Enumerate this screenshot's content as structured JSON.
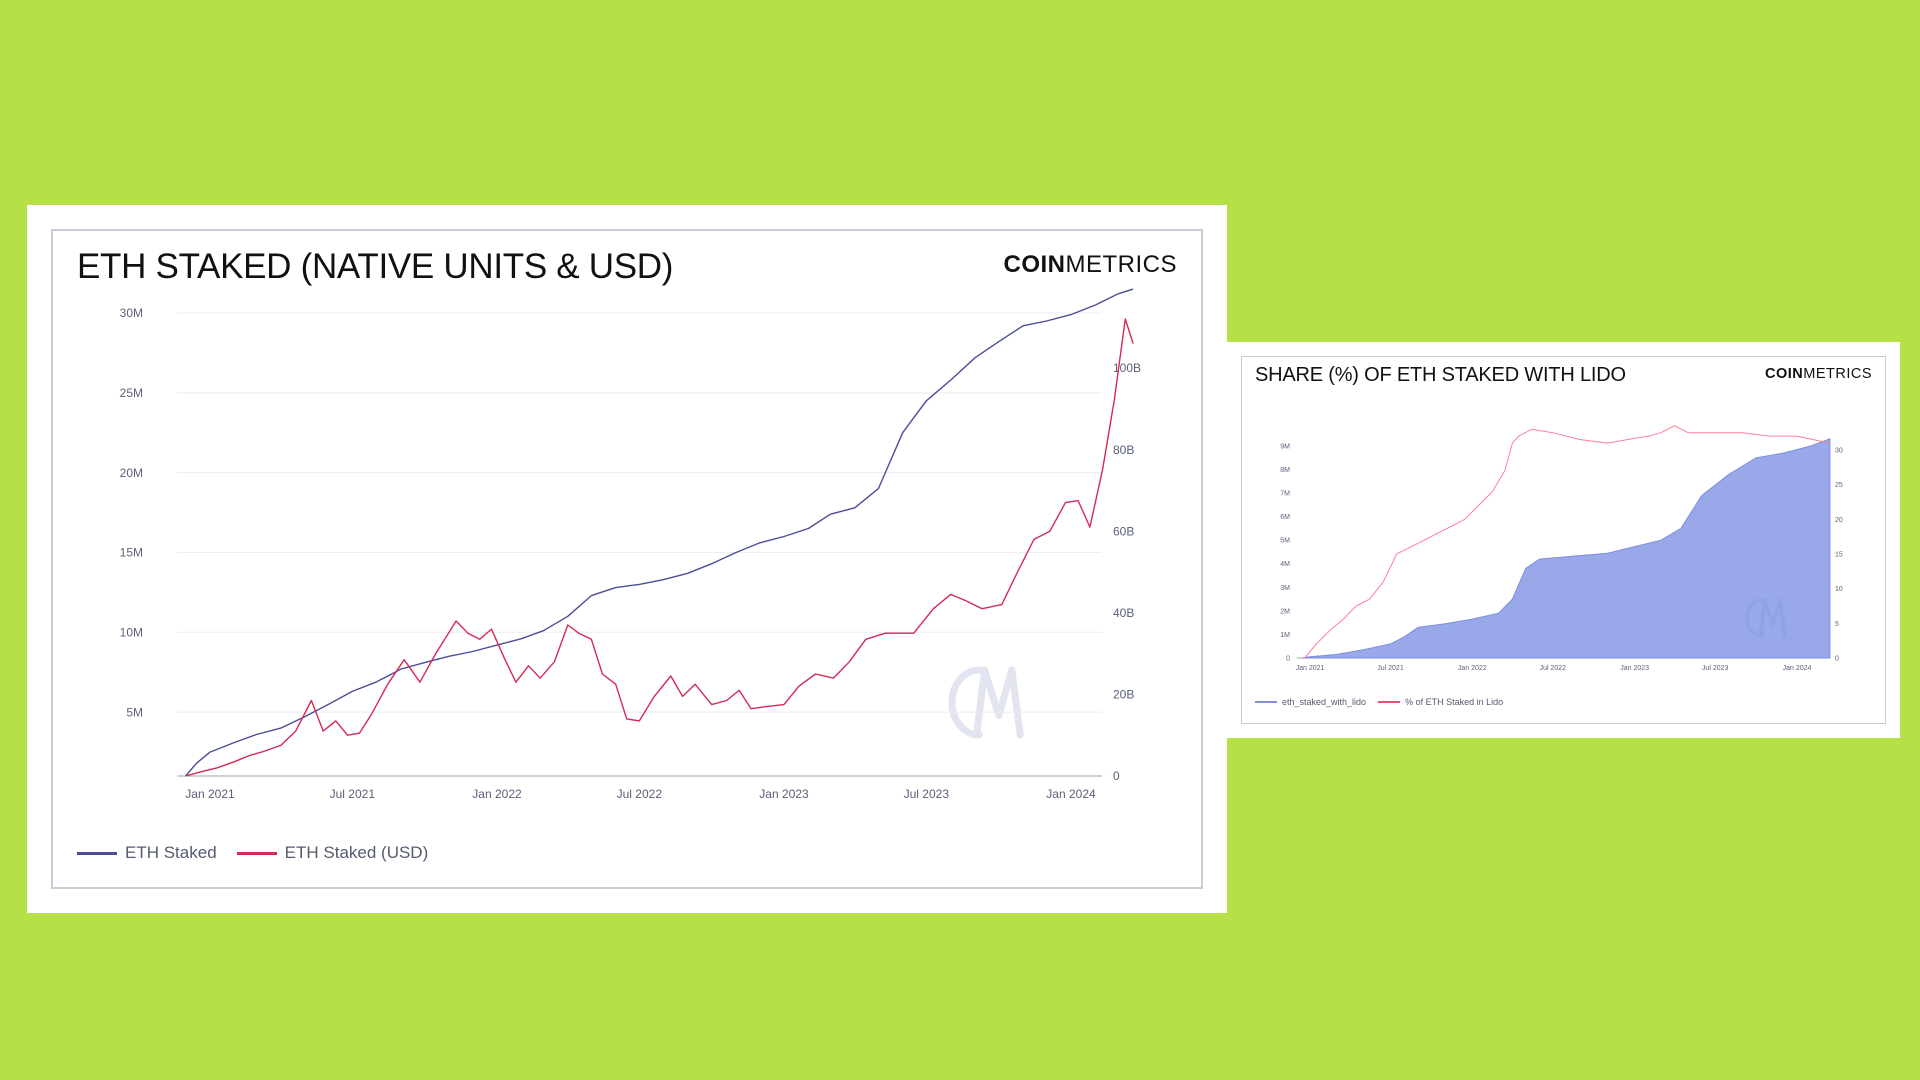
{
  "colors": {
    "background": "#b5e048",
    "eth_line": "#4a4e98",
    "usd_line": "#d42a55",
    "lido_area": "#8e9ee6",
    "lido_line": "#ff7f99",
    "grid": "#ececf2",
    "watermark": "#e2e4ef"
  },
  "icons": {
    "watermark": "cm-watermark-icon"
  },
  "chart_data": [
    {
      "type": "line",
      "title": "ETH STAKED (NATIVE UNITS & USD)",
      "logo": {
        "bold": "COIN",
        "regular": "METRICS"
      },
      "x_ticks": [
        "Jan 2021",
        "Jul 2021",
        "Jan 2022",
        "Jul 2022",
        "Jan 2023",
        "Jul 2023",
        "Jan 2024"
      ],
      "y_left_ticks": [
        "5M",
        "10M",
        "15M",
        "20M",
        "25M",
        "30M"
      ],
      "y_right_ticks": [
        "0",
        "20B",
        "40B",
        "60B",
        "80B",
        "100B"
      ],
      "y_left_range": [
        1000000,
        30000000
      ],
      "y_right_range": [
        0,
        100000000000
      ],
      "legend_position": "bottom-left",
      "grid": true,
      "series": [
        {
          "name": "ETH Staked",
          "axis": "left",
          "points": [
            [
              "2020-12-01",
              1000000
            ],
            [
              "2020-12-15",
              1800000
            ],
            [
              "2021-01-01",
              2500000
            ],
            [
              "2021-02-01",
              3100000
            ],
            [
              "2021-03-01",
              3600000
            ],
            [
              "2021-04-01",
              4000000
            ],
            [
              "2021-05-01",
              4700000
            ],
            [
              "2021-06-01",
              5500000
            ],
            [
              "2021-07-01",
              6300000
            ],
            [
              "2021-08-01",
              6900000
            ],
            [
              "2021-09-01",
              7700000
            ],
            [
              "2021-10-01",
              8100000
            ],
            [
              "2021-11-01",
              8500000
            ],
            [
              "2021-12-01",
              8800000
            ],
            [
              "2022-01-01",
              9200000
            ],
            [
              "2022-02-01",
              9600000
            ],
            [
              "2022-03-01",
              10100000
            ],
            [
              "2022-04-01",
              11000000
            ],
            [
              "2022-05-01",
              12300000
            ],
            [
              "2022-06-01",
              12800000
            ],
            [
              "2022-07-01",
              13000000
            ],
            [
              "2022-08-01",
              13300000
            ],
            [
              "2022-09-01",
              13700000
            ],
            [
              "2022-10-01",
              14300000
            ],
            [
              "2022-11-01",
              15000000
            ],
            [
              "2022-12-01",
              15600000
            ],
            [
              "2023-01-01",
              16000000
            ],
            [
              "2023-02-01",
              16500000
            ],
            [
              "2023-03-01",
              17400000
            ],
            [
              "2023-04-01",
              17800000
            ],
            [
              "2023-05-01",
              19000000
            ],
            [
              "2023-06-01",
              22500000
            ],
            [
              "2023-07-01",
              24500000
            ],
            [
              "2023-08-01",
              25800000
            ],
            [
              "2023-09-01",
              27200000
            ],
            [
              "2023-10-01",
              28200000
            ],
            [
              "2023-11-01",
              29200000
            ],
            [
              "2023-12-01",
              29500000
            ],
            [
              "2024-01-01",
              29900000
            ],
            [
              "2024-02-01",
              30500000
            ],
            [
              "2024-03-01",
              31200000
            ],
            [
              "2024-03-20",
              31500000
            ]
          ]
        },
        {
          "name": "ETH Staked (USD)",
          "axis": "right",
          "points": [
            [
              "2020-12-01",
              0
            ],
            [
              "2020-12-20",
              1000000000
            ],
            [
              "2021-01-10",
              2000000000
            ],
            [
              "2021-02-01",
              3500000000
            ],
            [
              "2021-02-20",
              5000000000
            ],
            [
              "2021-03-10",
              6000000000
            ],
            [
              "2021-04-01",
              7500000000
            ],
            [
              "2021-04-20",
              11000000000
            ],
            [
              "2021-05-10",
              18500000000
            ],
            [
              "2021-05-25",
              11000000000
            ],
            [
              "2021-06-10",
              13500000000
            ],
            [
              "2021-06-25",
              10000000000
            ],
            [
              "2021-07-10",
              10500000000
            ],
            [
              "2021-07-25",
              15000000000
            ],
            [
              "2021-08-15",
              22500000000
            ],
            [
              "2021-09-05",
              28500000000
            ],
            [
              "2021-09-25",
              23000000000
            ],
            [
              "2021-10-15",
              30000000000
            ],
            [
              "2021-11-10",
              38000000000
            ],
            [
              "2021-11-25",
              35000000000
            ],
            [
              "2021-12-10",
              33500000000
            ],
            [
              "2021-12-25",
              36000000000
            ],
            [
              "2022-01-10",
              29000000000
            ],
            [
              "2022-01-25",
              23000000000
            ],
            [
              "2022-02-10",
              27000000000
            ],
            [
              "2022-02-25",
              24000000000
            ],
            [
              "2022-03-15",
              28000000000
            ],
            [
              "2022-04-01",
              37000000000
            ],
            [
              "2022-04-15",
              35000000000
            ],
            [
              "2022-05-01",
              33500000000
            ],
            [
              "2022-05-15",
              25000000000
            ],
            [
              "2022-06-01",
              22500000000
            ],
            [
              "2022-06-15",
              14000000000
            ],
            [
              "2022-07-01",
              13500000000
            ],
            [
              "2022-07-20",
              19500000000
            ],
            [
              "2022-08-10",
              24500000000
            ],
            [
              "2022-08-25",
              19500000000
            ],
            [
              "2022-09-10",
              22500000000
            ],
            [
              "2022-10-01",
              17500000000
            ],
            [
              "2022-10-20",
              18500000000
            ],
            [
              "2022-11-05",
              21000000000
            ],
            [
              "2022-11-20",
              16500000000
            ],
            [
              "2022-12-10",
              17000000000
            ],
            [
              "2023-01-01",
              17500000000
            ],
            [
              "2023-01-20",
              22000000000
            ],
            [
              "2023-02-10",
              25000000000
            ],
            [
              "2023-03-05",
              24000000000
            ],
            [
              "2023-03-25",
              28000000000
            ],
            [
              "2023-04-15",
              33500000000
            ],
            [
              "2023-05-10",
              35000000000
            ],
            [
              "2023-06-15",
              35000000000
            ],
            [
              "2023-07-10",
              41000000000
            ],
            [
              "2023-08-01",
              44500000000
            ],
            [
              "2023-08-20",
              43000000000
            ],
            [
              "2023-09-10",
              41000000000
            ],
            [
              "2023-10-05",
              42000000000
            ],
            [
              "2023-10-25",
              50000000000
            ],
            [
              "2023-11-15",
              58000000000
            ],
            [
              "2023-12-05",
              60000000000
            ],
            [
              "2023-12-25",
              67000000000
            ],
            [
              "2024-01-10",
              67500000000
            ],
            [
              "2024-01-25",
              61000000000
            ],
            [
              "2024-02-10",
              75000000000
            ],
            [
              "2024-02-25",
              92000000000
            ],
            [
              "2024-03-10",
              112000000000
            ],
            [
              "2024-03-20",
              106000000000
            ]
          ]
        }
      ]
    },
    {
      "type": "area",
      "title": "SHARE (%) OF ETH STAKED WITH LIDO",
      "logo": {
        "bold": "COIN",
        "regular": "METRICS"
      },
      "x_ticks": [
        "Jan 2021",
        "Jul 2021",
        "Jan 2022",
        "Jul 2022",
        "Jan 2023",
        "Jul 2023",
        "Jan 2024"
      ],
      "y_left_ticks": [
        "0",
        "1M",
        "2M",
        "3M",
        "4M",
        "5M",
        "6M",
        "7M",
        "8M",
        "9M"
      ],
      "y_right_ticks": [
        "0",
        "5",
        "10",
        "15",
        "20",
        "25",
        "30"
      ],
      "y_left_range": [
        0,
        9000000
      ],
      "y_right_range": [
        0,
        30
      ],
      "legend_position": "bottom-left",
      "grid": false,
      "series": [
        {
          "name": "eth_staked_with_lido",
          "axis": "left",
          "type": "area",
          "points": [
            [
              "2020-12-15",
              0
            ],
            [
              "2021-01-01",
              50000
            ],
            [
              "2021-03-01",
              150000
            ],
            [
              "2021-05-01",
              350000
            ],
            [
              "2021-07-01",
              600000
            ],
            [
              "2021-08-01",
              900000
            ],
            [
              "2021-09-01",
              1300000
            ],
            [
              "2021-11-01",
              1450000
            ],
            [
              "2022-01-01",
              1650000
            ],
            [
              "2022-03-01",
              1900000
            ],
            [
              "2022-04-01",
              2500000
            ],
            [
              "2022-05-01",
              3800000
            ],
            [
              "2022-06-01",
              4200000
            ],
            [
              "2022-08-01",
              4300000
            ],
            [
              "2022-11-01",
              4450000
            ],
            [
              "2022-12-15",
              4650000
            ],
            [
              "2023-03-01",
              5000000
            ],
            [
              "2023-04-15",
              5500000
            ],
            [
              "2023-06-01",
              6900000
            ],
            [
              "2023-08-01",
              7800000
            ],
            [
              "2023-10-01",
              8500000
            ],
            [
              "2023-12-01",
              8700000
            ],
            [
              "2024-02-01",
              9000000
            ],
            [
              "2024-03-15",
              9300000
            ]
          ]
        },
        {
          "name": "% of ETH Staked in Lido",
          "axis": "right",
          "type": "line",
          "points": [
            [
              "2020-12-20",
              0
            ],
            [
              "2021-01-15",
              2
            ],
            [
              "2021-02-15",
              4
            ],
            [
              "2021-03-15",
              5.5
            ],
            [
              "2021-04-15",
              7.5
            ],
            [
              "2021-05-15",
              8.5
            ],
            [
              "2021-06-15",
              11
            ],
            [
              "2021-07-15",
              15
            ],
            [
              "2021-08-15",
              16
            ],
            [
              "2021-09-15",
              17
            ],
            [
              "2021-10-15",
              18
            ],
            [
              "2021-11-15",
              19
            ],
            [
              "2021-12-15",
              20
            ],
            [
              "2022-01-15",
              22
            ],
            [
              "2022-02-15",
              24
            ],
            [
              "2022-03-15",
              27
            ],
            [
              "2022-04-01",
              31
            ],
            [
              "2022-04-15",
              32
            ],
            [
              "2022-05-15",
              33
            ],
            [
              "2022-07-01",
              32.5
            ],
            [
              "2022-09-01",
              31.5
            ],
            [
              "2022-11-01",
              31
            ],
            [
              "2022-12-15",
              31.5
            ],
            [
              "2023-02-01",
              32
            ],
            [
              "2023-03-01",
              32.5
            ],
            [
              "2023-04-01",
              33.5
            ],
            [
              "2023-05-01",
              32.5
            ],
            [
              "2023-07-01",
              32.5
            ],
            [
              "2023-09-01",
              32.5
            ],
            [
              "2023-11-01",
              32
            ],
            [
              "2024-01-01",
              32
            ],
            [
              "2024-03-15",
              31
            ]
          ]
        }
      ]
    }
  ]
}
